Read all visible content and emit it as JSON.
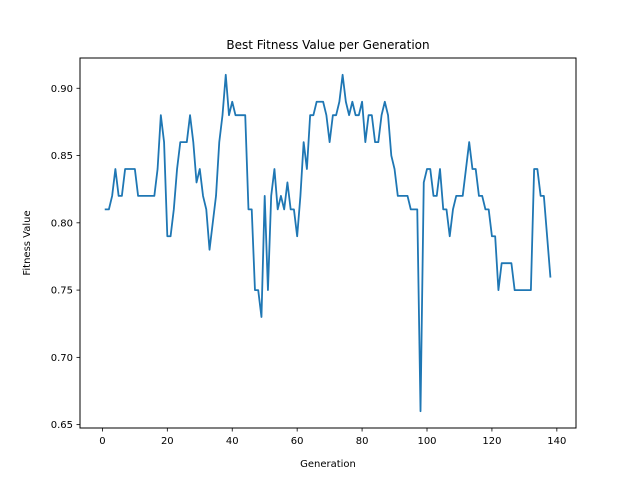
{
  "chart_data": {
    "type": "line",
    "title": "Best Fitness Value per Generation",
    "xlabel": "Generation",
    "ylabel": "Fitness Value",
    "xlim": [
      -6.9,
      145.9
    ],
    "ylim": [
      0.6475,
      0.9225
    ],
    "xticks": [
      0,
      20,
      40,
      60,
      80,
      100,
      120,
      140
    ],
    "xtick_labels": [
      "0",
      "20",
      "40",
      "60",
      "80",
      "100",
      "120",
      "140"
    ],
    "yticks": [
      0.65,
      0.7,
      0.75,
      0.8,
      0.85,
      0.9
    ],
    "ytick_labels": [
      "0.65",
      "0.70",
      "0.75",
      "0.80",
      "0.85",
      "0.90"
    ],
    "grid": false,
    "legend": "none",
    "series": [
      {
        "color": "#1f77b4",
        "x": [
          1,
          2,
          3,
          4,
          5,
          6,
          7,
          8,
          9,
          10,
          11,
          12,
          13,
          14,
          15,
          16,
          17,
          18,
          19,
          20,
          21,
          22,
          23,
          24,
          25,
          26,
          27,
          28,
          29,
          30,
          31,
          32,
          33,
          34,
          35,
          36,
          37,
          38,
          39,
          40,
          41,
          42,
          43,
          44,
          45,
          46,
          47,
          48,
          49,
          50,
          51,
          52,
          53,
          54,
          55,
          56,
          57,
          58,
          59,
          60,
          61,
          62,
          63,
          64,
          65,
          66,
          67,
          68,
          69,
          70,
          71,
          72,
          73,
          74,
          75,
          76,
          77,
          78,
          79,
          80,
          81,
          82,
          83,
          84,
          85,
          86,
          87,
          88,
          89,
          90,
          91,
          92,
          93,
          94,
          95,
          96,
          97,
          98,
          99,
          100,
          101,
          102,
          103,
          104,
          105,
          106,
          107,
          108,
          109,
          110,
          111,
          112,
          113,
          114,
          115,
          116,
          117,
          118,
          119,
          120,
          121,
          122,
          123,
          124,
          125,
          126,
          127,
          128,
          129,
          130,
          131,
          132,
          133,
          134,
          135,
          136,
          137,
          138
        ],
        "y": [
          0.81,
          0.81,
          0.82,
          0.84,
          0.82,
          0.82,
          0.84,
          0.84,
          0.84,
          0.84,
          0.82,
          0.82,
          0.82,
          0.82,
          0.82,
          0.82,
          0.84,
          0.88,
          0.86,
          0.79,
          0.79,
          0.81,
          0.84,
          0.86,
          0.86,
          0.86,
          0.88,
          0.86,
          0.83,
          0.84,
          0.82,
          0.81,
          0.78,
          0.8,
          0.82,
          0.86,
          0.88,
          0.91,
          0.88,
          0.89,
          0.88,
          0.88,
          0.88,
          0.88,
          0.81,
          0.81,
          0.75,
          0.75,
          0.73,
          0.82,
          0.75,
          0.82,
          0.84,
          0.81,
          0.82,
          0.81,
          0.83,
          0.81,
          0.81,
          0.79,
          0.82,
          0.86,
          0.84,
          0.88,
          0.88,
          0.89,
          0.89,
          0.89,
          0.88,
          0.86,
          0.88,
          0.88,
          0.89,
          0.91,
          0.89,
          0.88,
          0.89,
          0.88,
          0.88,
          0.89,
          0.86,
          0.88,
          0.88,
          0.86,
          0.86,
          0.88,
          0.89,
          0.88,
          0.85,
          0.84,
          0.82,
          0.82,
          0.82,
          0.82,
          0.81,
          0.81,
          0.81,
          0.66,
          0.83,
          0.84,
          0.84,
          0.82,
          0.82,
          0.84,
          0.81,
          0.81,
          0.79,
          0.81,
          0.82,
          0.82,
          0.82,
          0.84,
          0.86,
          0.84,
          0.84,
          0.82,
          0.82,
          0.81,
          0.81,
          0.79,
          0.79,
          0.75,
          0.77,
          0.77,
          0.77,
          0.77,
          0.75,
          0.75,
          0.75,
          0.75,
          0.75,
          0.75,
          0.84,
          0.84,
          0.82,
          0.82,
          0.79,
          0.76
        ]
      }
    ]
  }
}
